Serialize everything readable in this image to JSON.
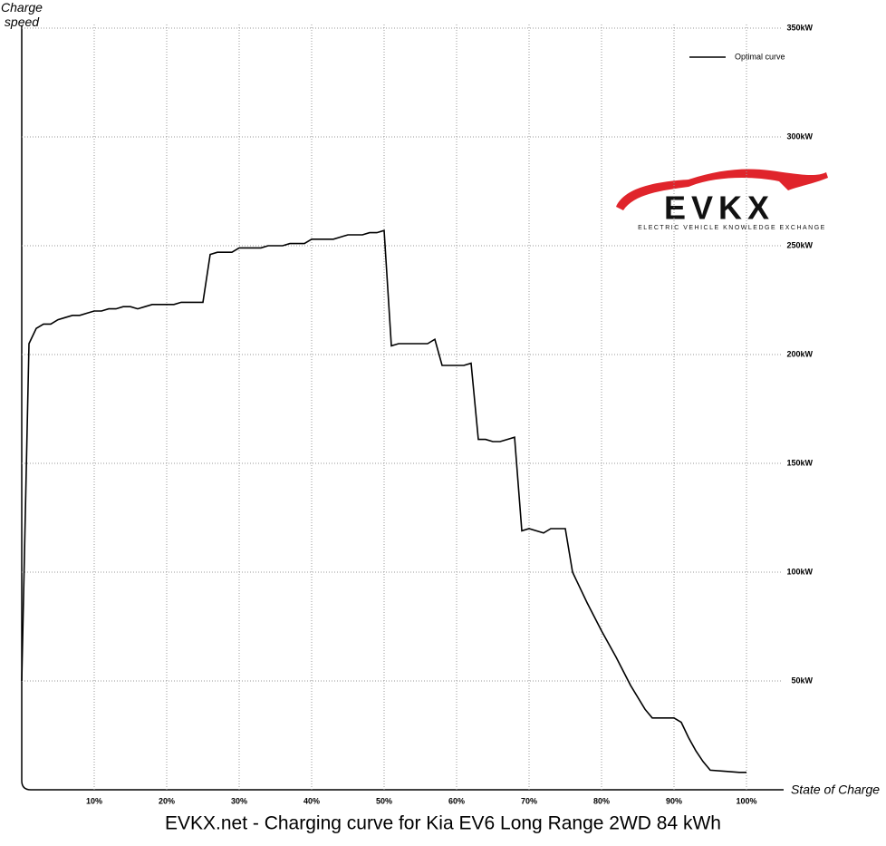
{
  "chart_data": {
    "type": "line",
    "title": "EVKX.net - Charging curve for Kia EV6 Long Range 2WD 84 kWh",
    "x_label": "State of Charge",
    "y_label": "Charge speed",
    "logo": {
      "name": "EVKX",
      "tagline": "ELECTRIC VEHICLE KNOWLEDGE EXCHANGE"
    },
    "x": [
      0,
      1,
      2,
      3,
      4,
      5,
      6,
      7,
      8,
      9,
      10,
      11,
      12,
      13,
      14,
      15,
      16,
      17,
      18,
      19,
      20,
      21,
      22,
      23,
      24,
      25,
      26,
      27,
      28,
      29,
      30,
      31,
      32,
      33,
      34,
      35,
      36,
      37,
      38,
      39,
      40,
      41,
      42,
      43,
      44,
      45,
      46,
      47,
      48,
      49,
      50,
      51,
      52,
      53,
      54,
      55,
      56,
      57,
      58,
      59,
      60,
      61,
      62,
      63,
      64,
      65,
      66,
      67,
      68,
      69,
      70,
      71,
      72,
      73,
      74,
      75,
      76,
      78,
      80,
      82,
      84,
      86,
      87,
      88,
      89,
      90,
      91,
      92,
      93,
      94,
      95,
      97,
      99,
      100
    ],
    "series": [
      {
        "name": "Optimal curve",
        "color": "#000000",
        "values": [
          50,
          205,
          212,
          214,
          214,
          216,
          217,
          218,
          218,
          219,
          220,
          220,
          221,
          221,
          222,
          222,
          221,
          222,
          223,
          223,
          223,
          223,
          224,
          224,
          224,
          224,
          246,
          247,
          247,
          247,
          249,
          249,
          249,
          249,
          250,
          250,
          250,
          251,
          251,
          251,
          253,
          253,
          253,
          253,
          254,
          255,
          255,
          255,
          256,
          256,
          257,
          204,
          205,
          205,
          205,
          205,
          205,
          207,
          195,
          195,
          195,
          195,
          196,
          161,
          161,
          160,
          160,
          161,
          162,
          119,
          120,
          119,
          118,
          120,
          120,
          120,
          100,
          86,
          73,
          61,
          48,
          37,
          33,
          33,
          33,
          33,
          31,
          24,
          18,
          13,
          9,
          8.5,
          8,
          8
        ]
      }
    ],
    "xlim": [
      0,
      105
    ],
    "ylim": [
      0,
      350
    ],
    "xticks": [
      {
        "value": 10,
        "label": "10%"
      },
      {
        "value": 20,
        "label": "20%"
      },
      {
        "value": 30,
        "label": "30%"
      },
      {
        "value": 40,
        "label": "40%"
      },
      {
        "value": 50,
        "label": "50%"
      },
      {
        "value": 60,
        "label": "60%"
      },
      {
        "value": 70,
        "label": "70%"
      },
      {
        "value": 80,
        "label": "80%"
      },
      {
        "value": 90,
        "label": "90%"
      },
      {
        "value": 100,
        "label": "100%"
      }
    ],
    "yticks": [
      {
        "value": 50,
        "label": "50kW"
      },
      {
        "value": 100,
        "label": "100kW"
      },
      {
        "value": 150,
        "label": "150kW"
      },
      {
        "value": 200,
        "label": "200kW"
      },
      {
        "value": 250,
        "label": "250kW"
      },
      {
        "value": 300,
        "label": "300kW"
      },
      {
        "value": 350,
        "label": "350kW"
      }
    ],
    "grid": true,
    "legend": "top-right"
  }
}
